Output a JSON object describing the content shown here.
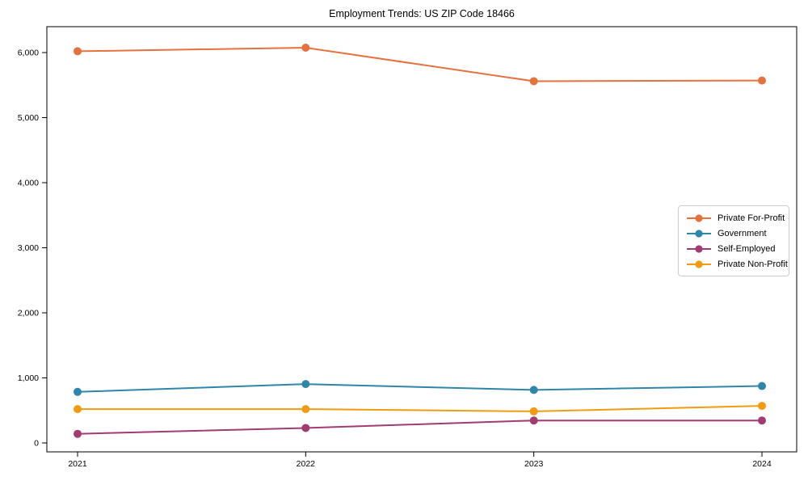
{
  "title": "Employment Trends: US ZIP Code 18466",
  "chart_data": {
    "type": "line",
    "x": [
      2021,
      2022,
      2023,
      2024
    ],
    "xtick_labels": [
      "2021",
      "2022",
      "2023",
      "2024"
    ],
    "yticks": [
      0,
      1000,
      2000,
      3000,
      4000,
      5000,
      6000
    ],
    "ytick_labels": [
      "0",
      "1,000",
      "2,000",
      "3,000",
      "4,000",
      "5,000",
      "6,000"
    ],
    "ylim": [
      -137,
      6398
    ],
    "series": [
      {
        "name": "Private For-Profit",
        "color": "#E5713D",
        "values": [
          6020,
          6075,
          5560,
          5570
        ]
      },
      {
        "name": "Government",
        "color": "#2E86AB",
        "values": [
          785,
          905,
          815,
          875
        ]
      },
      {
        "name": "Self-Employed",
        "color": "#A23B72",
        "values": [
          140,
          230,
          345,
          345
        ]
      },
      {
        "name": "Private Non-Profit",
        "color": "#F29B10",
        "values": [
          520,
          520,
          485,
          570
        ]
      }
    ],
    "title": "Employment Trends: US ZIP Code 18466",
    "xlabel": "",
    "ylabel": "",
    "grid": false,
    "legend_position": "center-right"
  }
}
